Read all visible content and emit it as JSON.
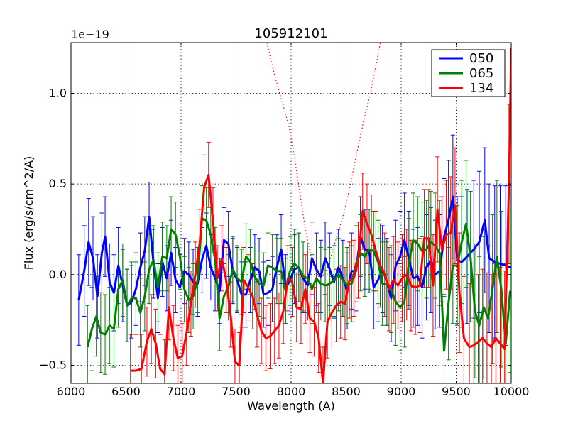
{
  "chart_data": {
    "type": "line",
    "title": "105912101",
    "xlabel": "Wavelength (A)",
    "ylabel": "Flux (erg/s/cm^2/A)",
    "offset_text": "1e−19",
    "xlim": [
      6000,
      10000
    ],
    "ylim": [
      -0.6,
      1.28
    ],
    "grid": true,
    "legend_position": "top-right",
    "xticks": [
      6000,
      6500,
      7000,
      7500,
      8000,
      8500,
      9000,
      9500,
      10000
    ],
    "xtick_labels": [
      "6000",
      "6500",
      "7000",
      "7500",
      "8000",
      "8500",
      "9000",
      "9500",
      "10000"
    ],
    "yticks": [
      -0.5,
      0.0,
      0.5,
      1.0
    ],
    "ytick_labels": [
      "−0.5",
      "0.0",
      "0.5",
      "1.0"
    ],
    "series": [
      {
        "name": "050",
        "color": "#0000ff",
        "x": [
          6070,
          6120,
          6160,
          6200,
          6240,
          6280,
          6310,
          6350,
          6390,
          6430,
          6470,
          6510,
          6550,
          6590,
          6630,
          6670,
          6710,
          6750,
          6790,
          6830,
          6870,
          6910,
          6950,
          6990,
          7030,
          7070,
          7110,
          7150,
          7190,
          7230,
          7270,
          7310,
          7350,
          7390,
          7430,
          7470,
          7510,
          7550,
          7590,
          7630,
          7670,
          7710,
          7750,
          7790,
          7830,
          7870,
          7910,
          7950,
          7990,
          8030,
          8070,
          8110,
          8150,
          8190,
          8230,
          8270,
          8310,
          8350,
          8390,
          8430,
          8470,
          8510,
          8550,
          8590,
          8630,
          8670,
          8710,
          8750,
          8790,
          8830,
          8870,
          8910,
          8950,
          8990,
          9030,
          9070,
          9110,
          9150,
          9190,
          9230,
          9270,
          9310,
          9350,
          9390,
          9430,
          9470,
          9510,
          9550,
          9600,
          9660,
          9710,
          9760,
          9800,
          9850,
          9900,
          9950,
          10000
        ],
        "values": [
          -0.14,
          0.02,
          0.18,
          0.09,
          -0.12,
          0.12,
          0.21,
          -0.04,
          -0.1,
          0.05,
          -0.06,
          -0.17,
          -0.15,
          -0.08,
          0.04,
          0.13,
          0.32,
          0.06,
          -0.13,
          0.07,
          -0.02,
          0.12,
          -0.03,
          -0.07,
          0.02,
          0.0,
          -0.04,
          -0.05,
          0.08,
          0.16,
          0.04,
          -0.02,
          -0.09,
          0.19,
          0.17,
          0.02,
          -0.03,
          -0.11,
          -0.11,
          -0.03,
          0.04,
          0.02,
          -0.11,
          -0.1,
          -0.08,
          0.04,
          0.14,
          -0.08,
          -0.03,
          0.03,
          0.04,
          -0.02,
          -0.06,
          0.09,
          0.03,
          -0.01,
          0.09,
          0.03,
          -0.04,
          0.04,
          -0.02,
          -0.09,
          0.02,
          0.02,
          0.21,
          0.14,
          0.13,
          -0.07,
          -0.03,
          0.03,
          -0.04,
          -0.13,
          0.05,
          0.1,
          0.19,
          0.09,
          -0.02,
          -0.01,
          -0.07,
          0.04,
          0.08,
          0.0,
          0.02,
          0.21,
          0.3,
          0.43,
          0.08,
          0.07,
          0.1,
          0.14,
          0.18,
          0.3,
          0.09,
          0.07,
          0.06,
          0.05,
          0.04
        ],
        "errors": [
          0.25,
          0.25,
          0.24,
          0.23,
          0.23,
          0.22,
          0.22,
          0.21,
          0.21,
          0.21,
          0.2,
          0.2,
          0.2,
          0.2,
          0.19,
          0.19,
          0.19,
          0.19,
          0.19,
          0.19,
          0.18,
          0.18,
          0.18,
          0.18,
          0.18,
          0.18,
          0.18,
          0.18,
          0.18,
          0.18,
          0.18,
          0.18,
          0.18,
          0.18,
          0.18,
          0.18,
          0.18,
          0.18,
          0.18,
          0.18,
          0.18,
          0.18,
          0.18,
          0.18,
          0.18,
          0.18,
          0.19,
          0.19,
          0.19,
          0.19,
          0.19,
          0.19,
          0.19,
          0.2,
          0.2,
          0.2,
          0.2,
          0.2,
          0.2,
          0.21,
          0.21,
          0.21,
          0.21,
          0.22,
          0.22,
          0.22,
          0.23,
          0.23,
          0.23,
          0.24,
          0.24,
          0.24,
          0.25,
          0.25,
          0.26,
          0.26,
          0.27,
          0.27,
          0.28,
          0.29,
          0.29,
          0.3,
          0.31,
          0.32,
          0.33,
          0.34,
          0.35,
          0.36,
          0.37,
          0.38,
          0.39,
          0.4,
          0.41,
          0.42,
          0.43,
          0.44,
          0.45
        ]
      },
      {
        "name": "065",
        "color": "#008000",
        "x": [
          6150,
          6190,
          6230,
          6270,
          6310,
          6350,
          6390,
          6430,
          6470,
          6510,
          6550,
          6590,
          6630,
          6670,
          6710,
          6750,
          6790,
          6830,
          6870,
          6910,
          6950,
          6990,
          7030,
          7070,
          7110,
          7150,
          7190,
          7230,
          7270,
          7310,
          7350,
          7390,
          7430,
          7470,
          7510,
          7550,
          7590,
          7630,
          7670,
          7710,
          7750,
          7790,
          7830,
          7870,
          7910,
          7950,
          7990,
          8030,
          8070,
          8110,
          8150,
          8190,
          8230,
          8270,
          8310,
          8350,
          8390,
          8430,
          8470,
          8510,
          8550,
          8590,
          8630,
          8670,
          8710,
          8750,
          8790,
          8830,
          8870,
          8910,
          8950,
          8990,
          9030,
          9070,
          9110,
          9150,
          9190,
          9230,
          9270,
          9310,
          9350,
          9390,
          9430,
          9470,
          9510,
          9550,
          9590,
          9630,
          9670,
          9710,
          9750,
          9790,
          9830,
          9870,
          9910,
          9950,
          9990
        ],
        "values": [
          -0.4,
          -0.3,
          -0.23,
          -0.32,
          -0.33,
          -0.28,
          -0.3,
          -0.08,
          -0.03,
          -0.17,
          -0.13,
          -0.13,
          -0.21,
          -0.12,
          0.03,
          0.08,
          -0.07,
          0.1,
          0.09,
          0.25,
          0.22,
          0.1,
          -0.08,
          -0.14,
          -0.12,
          -0.03,
          0.31,
          0.3,
          0.22,
          0.08,
          -0.24,
          -0.12,
          -0.07,
          0.03,
          -0.02,
          -0.04,
          0.1,
          0.07,
          -0.01,
          -0.05,
          -0.06,
          0.05,
          0.04,
          0.02,
          0.02,
          -0.09,
          0.02,
          0.06,
          0.04,
          -0.01,
          -0.02,
          -0.08,
          -0.02,
          -0.05,
          -0.06,
          -0.05,
          -0.03,
          0.0,
          -0.03,
          -0.06,
          -0.05,
          0.06,
          0.12,
          0.1,
          0.14,
          0.13,
          0.07,
          -0.05,
          -0.05,
          -0.08,
          -0.15,
          -0.18,
          -0.15,
          0.06,
          0.19,
          0.17,
          0.13,
          0.14,
          0.18,
          0.16,
          0.12,
          -0.42,
          -0.16,
          0.05,
          0.05,
          0.18,
          0.28,
          0.1,
          -0.2,
          -0.28,
          -0.18,
          -0.24,
          -0.08,
          0.1,
          -0.08,
          -0.38,
          -0.09
        ],
        "errors": [
          0.23,
          0.23,
          0.22,
          0.22,
          0.22,
          0.21,
          0.21,
          0.21,
          0.2,
          0.2,
          0.2,
          0.2,
          0.19,
          0.19,
          0.19,
          0.19,
          0.19,
          0.19,
          0.18,
          0.18,
          0.18,
          0.18,
          0.18,
          0.18,
          0.18,
          0.18,
          0.18,
          0.18,
          0.18,
          0.18,
          0.18,
          0.18,
          0.18,
          0.18,
          0.18,
          0.18,
          0.18,
          0.18,
          0.18,
          0.18,
          0.18,
          0.18,
          0.18,
          0.18,
          0.18,
          0.18,
          0.19,
          0.19,
          0.19,
          0.19,
          0.19,
          0.19,
          0.19,
          0.2,
          0.2,
          0.2,
          0.2,
          0.2,
          0.2,
          0.21,
          0.21,
          0.21,
          0.21,
          0.22,
          0.22,
          0.22,
          0.23,
          0.23,
          0.23,
          0.24,
          0.24,
          0.24,
          0.25,
          0.25,
          0.26,
          0.26,
          0.27,
          0.27,
          0.28,
          0.29,
          0.29,
          0.3,
          0.31,
          0.32,
          0.33,
          0.34,
          0.35,
          0.36,
          0.37,
          0.38,
          0.39,
          0.4,
          0.41,
          0.42,
          0.43,
          0.44,
          0.45
        ]
      },
      {
        "name": "134",
        "color": "#ff0000",
        "x": [
          6540,
          6590,
          6640,
          6690,
          6730,
          6770,
          6810,
          6850,
          6890,
          6930,
          6970,
          7010,
          7050,
          7090,
          7130,
          7170,
          7210,
          7250,
          7290,
          7330,
          7370,
          7410,
          7450,
          7490,
          7530,
          7570,
          7610,
          7650,
          7690,
          7730,
          7770,
          7810,
          7850,
          7890,
          7930,
          7970,
          8010,
          8050,
          8090,
          8130,
          8170,
          8210,
          8250,
          8290,
          8330,
          8370,
          8410,
          8450,
          8490,
          8530,
          8570,
          8610,
          8650,
          8690,
          8730,
          8770,
          8810,
          8850,
          8890,
          8930,
          8970,
          9010,
          9050,
          9090,
          9130,
          9170,
          9210,
          9250,
          9290,
          9330,
          9370,
          9410,
          9450,
          9490,
          9530,
          9570,
          9620,
          9660,
          9700,
          9740,
          9780,
          9820,
          9860,
          9900,
          9940,
          9980,
          10000
        ],
        "values": [
          -0.53,
          -0.53,
          -0.52,
          -0.37,
          -0.3,
          -0.38,
          -0.52,
          -0.55,
          -0.18,
          -0.35,
          -0.46,
          -0.45,
          -0.32,
          -0.16,
          0.0,
          0.18,
          0.48,
          0.55,
          0.3,
          -0.02,
          0.09,
          -0.03,
          -0.22,
          -0.48,
          -0.5,
          -0.03,
          -0.07,
          -0.12,
          -0.22,
          -0.31,
          -0.35,
          -0.34,
          -0.31,
          -0.28,
          -0.2,
          -0.02,
          -0.04,
          -0.18,
          -0.19,
          -0.08,
          -0.24,
          -0.26,
          -0.35,
          -0.6,
          -0.26,
          -0.21,
          -0.17,
          -0.15,
          -0.16,
          -0.03,
          -0.02,
          0.08,
          0.35,
          0.28,
          0.22,
          0.13,
          0.05,
          0.0,
          -0.08,
          -0.03,
          -0.06,
          -0.02,
          0.0,
          -0.06,
          -0.07,
          -0.06,
          0.2,
          0.2,
          -0.06,
          0.36,
          0.14,
          0.22,
          0.23,
          0.38,
          -0.1,
          -0.35,
          -0.4,
          -0.39,
          -0.37,
          -0.35,
          -0.38,
          -0.4,
          -0.35,
          -0.38,
          -0.41,
          0.5,
          1.25
        ],
        "errors": [
          0.2,
          0.2,
          0.19,
          0.19,
          0.19,
          0.19,
          0.19,
          0.19,
          0.18,
          0.18,
          0.18,
          0.18,
          0.18,
          0.18,
          0.18,
          0.18,
          0.18,
          0.18,
          0.18,
          0.18,
          0.18,
          0.18,
          0.18,
          0.18,
          0.18,
          0.18,
          0.18,
          0.18,
          0.18,
          0.18,
          0.18,
          0.18,
          0.18,
          0.18,
          0.18,
          0.18,
          0.19,
          0.19,
          0.19,
          0.19,
          0.19,
          0.19,
          0.19,
          0.2,
          0.2,
          0.2,
          0.2,
          0.2,
          0.2,
          0.21,
          0.21,
          0.21,
          0.21,
          0.22,
          0.22,
          0.22,
          0.23,
          0.23,
          0.23,
          0.24,
          0.24,
          0.24,
          0.25,
          0.25,
          0.26,
          0.26,
          0.27,
          0.27,
          0.28,
          0.29,
          0.29,
          0.3,
          0.31,
          0.32,
          0.33,
          0.34,
          0.35,
          0.36,
          0.37,
          0.38,
          0.39,
          0.4,
          0.41,
          0.42,
          0.43,
          0.44,
          0.45
        ]
      }
    ],
    "reference_curve": {
      "name": "dotted-template",
      "color": "#ff0000",
      "x": [
        7780,
        7850,
        7920,
        7980,
        8030,
        8080,
        8130,
        8180,
        8230,
        8270,
        8300,
        8340,
        8380,
        8420,
        8480,
        8540,
        8600,
        8660,
        8720,
        8770,
        8810
      ],
      "values": [
        1.28,
        1.1,
        0.95,
        0.82,
        0.65,
        0.45,
        0.25,
        0.1,
        0.0,
        -0.02,
        0.0,
        0.05,
        0.14,
        0.22,
        0.34,
        0.5,
        0.68,
        0.85,
        1.0,
        1.15,
        1.28
      ]
    }
  }
}
